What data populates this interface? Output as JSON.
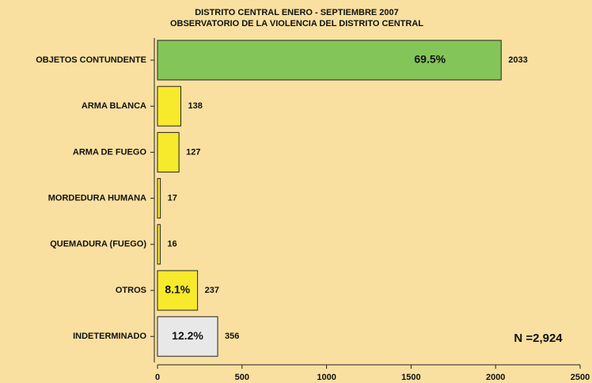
{
  "chart_data": {
    "type": "bar",
    "orientation": "horizontal",
    "title": [
      "DISTRITO CENTRAL ENERO - SEPTIEMBRE 2007",
      "OBSERVATORIO DE LA VIOLENCIA DEL DISTRITO CENTRAL"
    ],
    "categories": [
      "OBJETOS CONTUNDENTE",
      "ARMA BLANCA",
      "ARMA DE FUEGO",
      "MORDEDURA HUMANA",
      "QUEMADURA (FUEGO)",
      "OTROS",
      "INDETERMINADO"
    ],
    "values": [
      2033,
      138,
      127,
      17,
      16,
      237,
      356
    ],
    "colors": [
      "#84c55a",
      "#f7e92b",
      "#f7e92b",
      "#f7e92b",
      "#f7e92b",
      "#f7e92b",
      "#e8e8e8"
    ],
    "percent_labels": [
      "69.5%",
      null,
      null,
      null,
      null,
      "8.1%",
      "12.2%"
    ],
    "annotation": "N =2,924",
    "xlim": [
      0,
      2500
    ],
    "xticks": [
      0,
      500,
      1000,
      1500,
      2000,
      2500
    ]
  }
}
